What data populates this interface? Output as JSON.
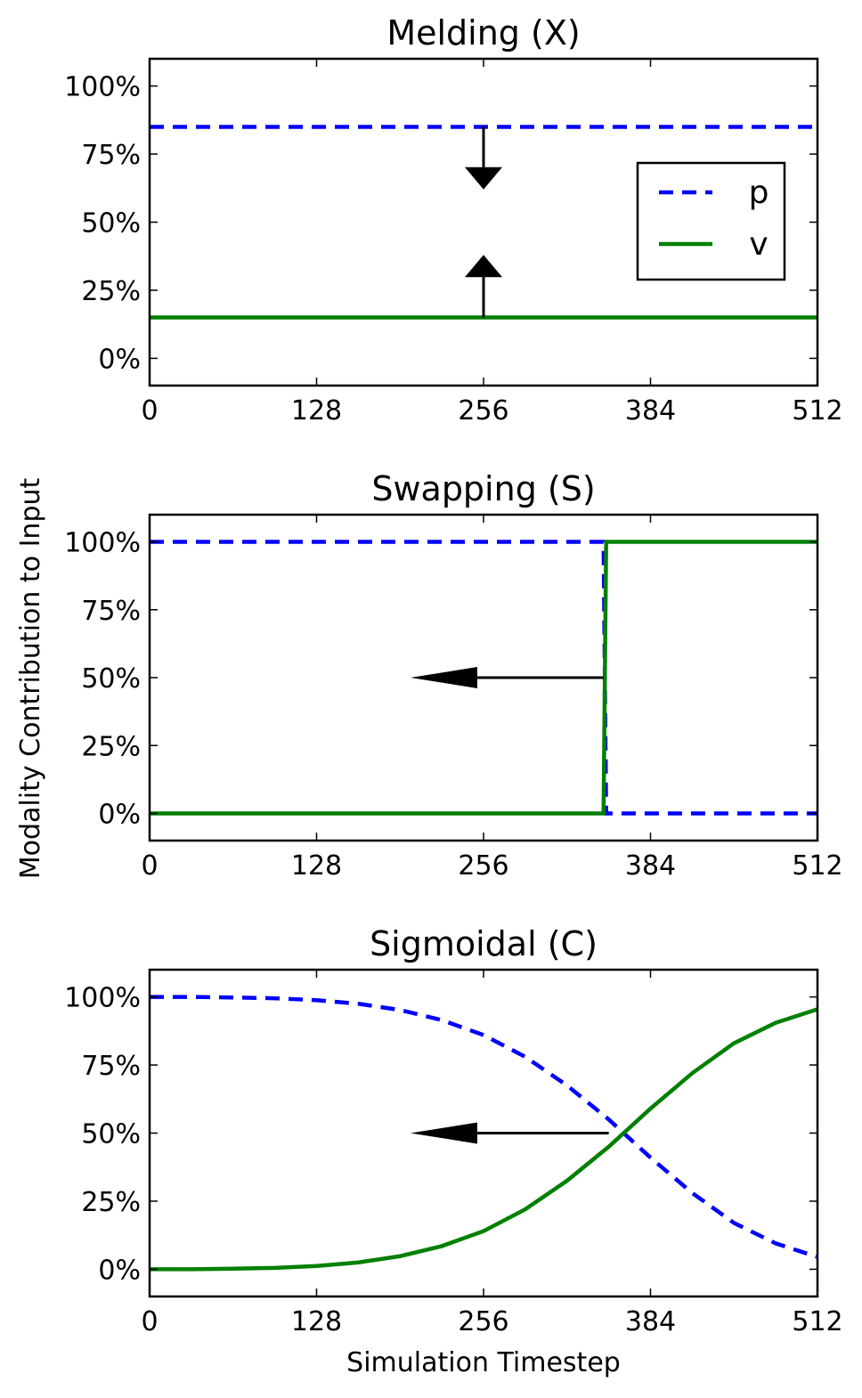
{
  "ylabel": "Modality Contribution to Input",
  "xlabel": "Simulation Timestep",
  "colors": {
    "p": "#0000ff",
    "v": "#008000",
    "arrow": "#000000"
  },
  "xticks": [
    "0",
    "128",
    "256",
    "384",
    "512"
  ],
  "yticks": [
    "0%",
    "25%",
    "50%",
    "75%",
    "100%"
  ],
  "legend": {
    "position": "right",
    "entries": [
      "p",
      "v"
    ]
  },
  "chart_data": [
    {
      "type": "line",
      "title": "Melding (X)",
      "xlim": [
        0,
        512
      ],
      "ylim": [
        -0.1,
        1.1
      ],
      "grid": false,
      "series": [
        {
          "name": "p",
          "style": "dashed",
          "x": [
            0,
            512
          ],
          "y": [
            0.85,
            0.85
          ]
        },
        {
          "name": "v",
          "style": "solid",
          "x": [
            0,
            512
          ],
          "y": [
            0.15,
            0.15
          ]
        }
      ],
      "annotations": [
        {
          "type": "arrow",
          "from": [
            256,
            0.85
          ],
          "to": [
            256,
            0.62
          ]
        },
        {
          "type": "arrow",
          "from": [
            256,
            0.15
          ],
          "to": [
            256,
            0.38
          ]
        }
      ]
    },
    {
      "type": "line",
      "title": "Swapping (S)",
      "xlim": [
        0,
        512
      ],
      "ylim": [
        -0.1,
        1.1
      ],
      "grid": false,
      "series": [
        {
          "name": "p",
          "style": "dashed",
          "x": [
            0,
            348,
            350,
            512
          ],
          "y": [
            1.0,
            1.0,
            0.0,
            0.0
          ]
        },
        {
          "name": "v",
          "style": "solid",
          "x": [
            0,
            348,
            350,
            512
          ],
          "y": [
            0.0,
            0.0,
            1.0,
            1.0
          ]
        }
      ],
      "annotations": [
        {
          "type": "arrow",
          "from": [
            348,
            0.5
          ],
          "to": [
            200,
            0.5
          ]
        }
      ]
    },
    {
      "type": "line",
      "title": "Sigmoidal (C)",
      "xlim": [
        0,
        512
      ],
      "ylim": [
        -0.1,
        1.1
      ],
      "grid": false,
      "series": [
        {
          "name": "p",
          "style": "dashed",
          "x": [
            0,
            32,
            64,
            96,
            128,
            160,
            192,
            224,
            256,
            288,
            320,
            352,
            384,
            416,
            448,
            480,
            512
          ],
          "y": [
            1.0,
            1.0,
            0.998,
            0.995,
            0.988,
            0.975,
            0.952,
            0.915,
            0.86,
            0.78,
            0.675,
            0.55,
            0.41,
            0.28,
            0.17,
            0.095,
            0.045
          ]
        },
        {
          "name": "v",
          "style": "solid",
          "x": [
            0,
            32,
            64,
            96,
            128,
            160,
            192,
            224,
            256,
            288,
            320,
            352,
            384,
            416,
            448,
            480,
            512
          ],
          "y": [
            0.0,
            0.0,
            0.002,
            0.005,
            0.012,
            0.025,
            0.048,
            0.085,
            0.14,
            0.22,
            0.325,
            0.45,
            0.59,
            0.72,
            0.83,
            0.905,
            0.955
          ]
        }
      ],
      "annotations": [
        {
          "type": "arrow",
          "from": [
            352,
            0.5
          ],
          "to": [
            200,
            0.5
          ]
        }
      ]
    }
  ]
}
